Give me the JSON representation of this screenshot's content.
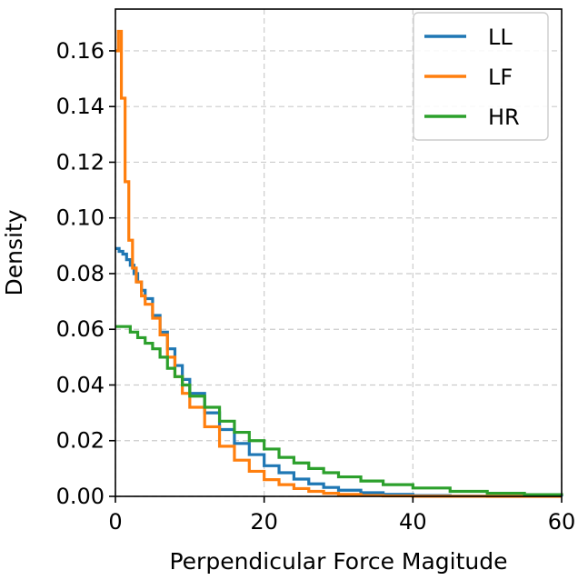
{
  "chart_data": {
    "type": "line",
    "title": "",
    "xlabel": "Perpendicular Force Magitude",
    "ylabel": "Density",
    "xlim": [
      0,
      60
    ],
    "ylim": [
      0,
      0.175
    ],
    "xticks": [
      0,
      20,
      40,
      60
    ],
    "xtick_labels": [
      "0",
      "20",
      "40",
      "60"
    ],
    "yticks": [
      0.0,
      0.02,
      0.04,
      0.06,
      0.08,
      0.1,
      0.12,
      0.14,
      0.16
    ],
    "ytick_labels": [
      "0.00",
      "0.02",
      "0.04",
      "0.06",
      "0.08",
      "0.10",
      "0.12",
      "0.14",
      "0.16"
    ],
    "grid": true,
    "legend_position": "top-right",
    "series": [
      {
        "name": "LL",
        "color": "#1f77b4",
        "x": [
          0,
          0.5,
          1,
          1.5,
          2,
          2.5,
          3,
          3.5,
          4,
          5,
          6,
          7,
          8,
          9,
          10,
          12,
          14,
          16,
          18,
          20,
          22,
          24,
          26,
          28,
          30,
          33,
          36,
          40,
          45,
          50,
          55,
          60
        ],
        "y": [
          0.089,
          0.088,
          0.087,
          0.085,
          0.083,
          0.08,
          0.077,
          0.074,
          0.071,
          0.065,
          0.059,
          0.053,
          0.047,
          0.042,
          0.037,
          0.03,
          0.024,
          0.019,
          0.015,
          0.011,
          0.0085,
          0.0062,
          0.0045,
          0.0032,
          0.0022,
          0.0013,
          0.0007,
          0.0003,
          0.0001,
          5e-05,
          2e-05,
          0.0
        ]
      },
      {
        "name": "LF",
        "color": "#ff7f0e",
        "x": [
          0,
          0.4,
          0.8,
          1.3,
          1.8,
          2.3,
          2.8,
          3.5,
          4,
          5,
          6,
          7,
          8,
          9,
          10,
          12,
          14,
          16,
          18,
          20,
          22,
          24,
          26,
          28,
          30,
          33,
          36,
          40,
          45,
          50,
          55,
          60
        ],
        "y": [
          0.16,
          0.167,
          0.143,
          0.113,
          0.092,
          0.082,
          0.077,
          0.072,
          0.069,
          0.064,
          0.058,
          0.05,
          0.043,
          0.037,
          0.032,
          0.025,
          0.018,
          0.013,
          0.009,
          0.006,
          0.0042,
          0.0028,
          0.0018,
          0.0011,
          0.0007,
          0.0003,
          0.00015,
          5e-05,
          2e-05,
          0.0,
          0.0,
          0.0
        ]
      },
      {
        "name": "HR",
        "color": "#2ca02c",
        "x": [
          0,
          1,
          2,
          3,
          4,
          5,
          6,
          7,
          8,
          9,
          10,
          12,
          14,
          16,
          18,
          20,
          22,
          24,
          26,
          28,
          30,
          33,
          36,
          40,
          45,
          50,
          55,
          60
        ],
        "y": [
          0.061,
          0.061,
          0.059,
          0.057,
          0.055,
          0.053,
          0.05,
          0.046,
          0.043,
          0.04,
          0.036,
          0.032,
          0.027,
          0.023,
          0.02,
          0.017,
          0.014,
          0.012,
          0.01,
          0.0085,
          0.007,
          0.0055,
          0.0042,
          0.003,
          0.0018,
          0.0011,
          0.0006,
          0.0003
        ]
      }
    ]
  }
}
